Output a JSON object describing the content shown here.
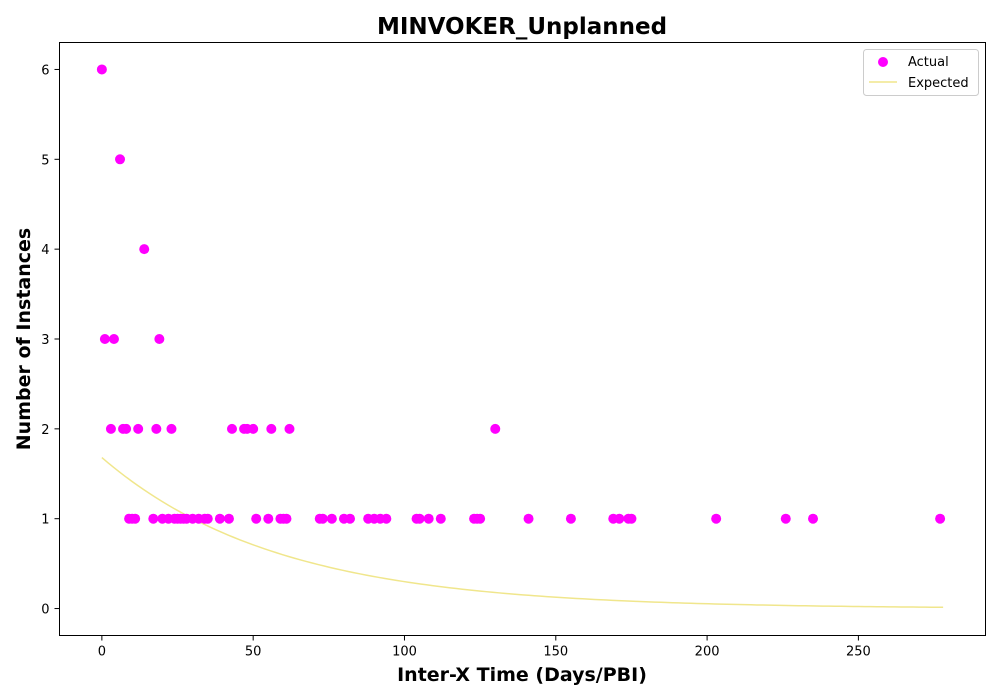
{
  "chart_data": {
    "type": "scatter",
    "title": "MINVOKER_Unplanned",
    "xlabel": "Inter-X Time (Days/PBI)",
    "ylabel": "Number of Instances",
    "xlim": [
      -14,
      292
    ],
    "ylim": [
      -0.3,
      6.3
    ],
    "xticks": [
      0,
      50,
      100,
      150,
      200,
      250
    ],
    "yticks": [
      0,
      1,
      2,
      3,
      4,
      5,
      6
    ],
    "grid": false,
    "legend_position": "top-right",
    "series": [
      {
        "name": "Actual",
        "kind": "scatter",
        "color": "#ff00ff",
        "points": [
          [
            0,
            6
          ],
          [
            1,
            3
          ],
          [
            3,
            2
          ],
          [
            4,
            3
          ],
          [
            6,
            5
          ],
          [
            7,
            2
          ],
          [
            8,
            2
          ],
          [
            9,
            1
          ],
          [
            10,
            1
          ],
          [
            11,
            1
          ],
          [
            12,
            2
          ],
          [
            14,
            4
          ],
          [
            17,
            1
          ],
          [
            18,
            2
          ],
          [
            19,
            3
          ],
          [
            20,
            1
          ],
          [
            22,
            1
          ],
          [
            23,
            2
          ],
          [
            24,
            1
          ],
          [
            25,
            1
          ],
          [
            26,
            1
          ],
          [
            27,
            1
          ],
          [
            28,
            1
          ],
          [
            30,
            1
          ],
          [
            32,
            1
          ],
          [
            34,
            1
          ],
          [
            35,
            1
          ],
          [
            39,
            1
          ],
          [
            42,
            1
          ],
          [
            43,
            2
          ],
          [
            47,
            2
          ],
          [
            48,
            2
          ],
          [
            50,
            2
          ],
          [
            51,
            1
          ],
          [
            55,
            1
          ],
          [
            56,
            2
          ],
          [
            59,
            1
          ],
          [
            60,
            1
          ],
          [
            61,
            1
          ],
          [
            62,
            2
          ],
          [
            72,
            1
          ],
          [
            73,
            1
          ],
          [
            76,
            1
          ],
          [
            80,
            1
          ],
          [
            82,
            1
          ],
          [
            88,
            1
          ],
          [
            90,
            1
          ],
          [
            92,
            1
          ],
          [
            94,
            1
          ],
          [
            104,
            1
          ],
          [
            105,
            1
          ],
          [
            108,
            1
          ],
          [
            112,
            1
          ],
          [
            123,
            1
          ],
          [
            124,
            1
          ],
          [
            125,
            1
          ],
          [
            130,
            2
          ],
          [
            141,
            1
          ],
          [
            155,
            1
          ],
          [
            169,
            1
          ],
          [
            171,
            1
          ],
          [
            174,
            1
          ],
          [
            175,
            1
          ],
          [
            203,
            1
          ],
          [
            226,
            1
          ],
          [
            235,
            1
          ],
          [
            277,
            1
          ]
        ]
      },
      {
        "name": "Expected",
        "kind": "line",
        "color": "#f0e68c",
        "amplitude": 1.68,
        "decay_rate": 0.01725,
        "x_range": [
          0,
          278
        ]
      }
    ]
  }
}
